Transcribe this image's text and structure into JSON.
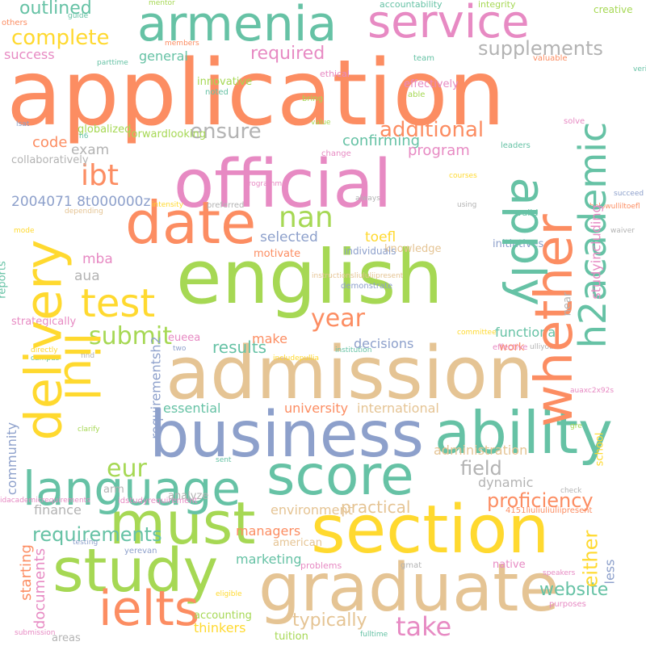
{
  "palette": {
    "orange": "#fc8d62",
    "green": "#66c2a5",
    "pink": "#e78ac3",
    "lime": "#a6d854",
    "yellow": "#ffd92f",
    "tan": "#e5c494",
    "blue": "#8da0cb",
    "gray": "#b3b3b3"
  },
  "words": [
    {
      "text": "application",
      "color": "orange"
    },
    {
      "text": "english",
      "color": "lime"
    },
    {
      "text": "admission",
      "color": "tan"
    },
    {
      "text": "official",
      "color": "pink"
    },
    {
      "text": "business",
      "color": "blue"
    },
    {
      "text": "section",
      "color": "yellow"
    },
    {
      "text": "graduate",
      "color": "tan"
    },
    {
      "text": "study",
      "color": "lime"
    },
    {
      "text": "score",
      "color": "green"
    },
    {
      "text": "must",
      "color": "lime"
    },
    {
      "text": "date",
      "color": "orange"
    },
    {
      "text": "ability",
      "color": "green"
    },
    {
      "text": "language",
      "color": "green"
    },
    {
      "text": "ielts",
      "color": "orange"
    },
    {
      "text": "armenia",
      "color": "green"
    },
    {
      "text": "service",
      "color": "pink"
    },
    {
      "text": "test",
      "color": "yellow"
    },
    {
      "text": "take",
      "color": "pink"
    },
    {
      "text": "ibt",
      "color": "orange"
    },
    {
      "text": "nan",
      "color": "lime"
    },
    {
      "text": "eur",
      "color": "lime"
    },
    {
      "text": "year",
      "color": "orange"
    },
    {
      "text": "ensure",
      "color": "gray"
    },
    {
      "text": "additional",
      "color": "orange"
    },
    {
      "text": "submit",
      "color": "lime"
    },
    {
      "text": "complete",
      "color": "yellow"
    },
    {
      "text": "required",
      "color": "pink"
    },
    {
      "text": "supplements",
      "color": "gray"
    },
    {
      "text": "outlined",
      "color": "green"
    },
    {
      "text": "requirements",
      "color": "green"
    },
    {
      "text": "field",
      "color": "gray"
    },
    {
      "text": "website",
      "color": "green"
    },
    {
      "text": "proficiency",
      "color": "orange"
    },
    {
      "text": "typically",
      "color": "tan"
    },
    {
      "text": "practical",
      "color": "tan"
    },
    {
      "text": "results",
      "color": "green"
    },
    {
      "text": "general",
      "color": "green"
    },
    {
      "text": "code",
      "color": "orange"
    },
    {
      "text": "exam",
      "color": "gray"
    },
    {
      "text": "confirming",
      "color": "green"
    },
    {
      "text": "program",
      "color": "pink"
    },
    {
      "text": "selected",
      "color": "blue"
    },
    {
      "text": "toefl",
      "color": "yellow"
    },
    {
      "text": "mba",
      "color": "pink"
    },
    {
      "text": "aua",
      "color": "gray"
    },
    {
      "text": "2004071 8t000000z",
      "color": "blue"
    },
    {
      "text": "success",
      "color": "pink"
    },
    {
      "text": "make",
      "color": "orange"
    },
    {
      "text": "decisions",
      "color": "blue"
    },
    {
      "text": "functional",
      "color": "green"
    },
    {
      "text": "essential",
      "color": "green"
    },
    {
      "text": "university",
      "color": "orange"
    },
    {
      "text": "international",
      "color": "tan"
    },
    {
      "text": "administration",
      "color": "tan"
    },
    {
      "text": "dynamic",
      "color": "gray"
    },
    {
      "text": "marketing",
      "color": "green"
    },
    {
      "text": "managers",
      "color": "orange"
    },
    {
      "text": "environment",
      "color": "tan"
    },
    {
      "text": "finance",
      "color": "gray"
    },
    {
      "text": "thinkers",
      "color": "yellow"
    },
    {
      "text": "accounting",
      "color": "lime"
    },
    {
      "text": "areas",
      "color": "gray"
    },
    {
      "text": "tuition",
      "color": "lime"
    },
    {
      "text": "analyze",
      "color": "gray"
    },
    {
      "text": "arm",
      "color": "gray"
    },
    {
      "text": "american",
      "color": "tan"
    },
    {
      "text": "native",
      "color": "pink"
    },
    {
      "text": "problems",
      "color": "pink"
    },
    {
      "text": "knowledge",
      "color": "tan"
    },
    {
      "text": "motivate",
      "color": "orange"
    },
    {
      "text": "initiatives",
      "color": "blue"
    },
    {
      "text": "individuals",
      "color": "blue"
    },
    {
      "text": "innovative",
      "color": "lime"
    },
    {
      "text": "forwardlooking",
      "color": "lime"
    },
    {
      "text": "globalized",
      "color": "lime"
    },
    {
      "text": "effectively",
      "color": "pink"
    },
    {
      "text": "collaboratively",
      "color": "gray"
    },
    {
      "text": "strategically",
      "color": "pink"
    },
    {
      "text": "euеea",
      "color": "pink"
    },
    {
      "text": "work",
      "color": "orange"
    },
    {
      "text": "creative",
      "color": "lime"
    },
    {
      "text": "accountability",
      "color": "green"
    },
    {
      "text": "integrity",
      "color": "lime"
    },
    {
      "text": "ethical",
      "color": "pink"
    },
    {
      "text": "bring",
      "color": "lime"
    },
    {
      "text": "able",
      "color": "lime"
    },
    {
      "text": "team",
      "color": "green"
    },
    {
      "text": "valuable",
      "color": "orange"
    },
    {
      "text": "value",
      "color": "lime"
    },
    {
      "text": "change",
      "color": "pink"
    },
    {
      "text": "leaders",
      "color": "green"
    },
    {
      "text": "solve",
      "color": "pink"
    },
    {
      "text": "effective",
      "color": "pink"
    },
    {
      "text": "others",
      "color": "orange"
    },
    {
      "text": "guide",
      "color": "green"
    },
    {
      "text": "mentor",
      "color": "lime"
    },
    {
      "text": "members",
      "color": "orange"
    },
    {
      "text": "parttime",
      "color": "green"
    },
    {
      "text": "noted",
      "color": "green"
    },
    {
      "text": "h6",
      "color": "green"
    },
    {
      "text": "lsat",
      "color": "blue"
    },
    {
      "text": "always",
      "color": "gray"
    },
    {
      "text": "courses",
      "color": "yellow"
    },
    {
      "text": "programme",
      "color": "pink"
    },
    {
      "text": "intensity",
      "color": "yellow"
    },
    {
      "text": "preferred",
      "color": "gray"
    },
    {
      "text": "depending",
      "color": "tan"
    },
    {
      "text": "using",
      "color": "gray"
    },
    {
      "text": "valid",
      "color": "green"
    },
    {
      "text": "succeed",
      "color": "blue"
    },
    {
      "text": "belowulliltoefl",
      "color": "orange"
    },
    {
      "text": "instructionsliululiipresent",
      "color": "tan"
    },
    {
      "text": "demonstrate",
      "color": "blue"
    },
    {
      "text": "mode",
      "color": "yellow"
    },
    {
      "text": "waiver",
      "color": "gray"
    },
    {
      "text": "verify",
      "color": "green"
    },
    {
      "text": "directly",
      "color": "yellow"
    },
    {
      "text": "campus",
      "color": "green"
    },
    {
      "text": "find",
      "color": "gray"
    },
    {
      "text": "two",
      "color": "blue"
    },
    {
      "text": "committee",
      "color": "yellow"
    },
    {
      "text": "includepullia",
      "color": "yellow"
    },
    {
      "text": "institution",
      "color": "green"
    },
    {
      "text": "ulliyou",
      "color": "gray"
    },
    {
      "text": "clarify",
      "color": "lime"
    },
    {
      "text": "sent",
      "color": "green"
    },
    {
      "text": "auaxc2x92s",
      "color": "pink"
    },
    {
      "text": "gre",
      "color": "lime"
    },
    {
      "text": "check",
      "color": "gray"
    },
    {
      "text": "idstudyrequirement",
      "color": "pink"
    },
    {
      "text": "idacademicrequirements",
      "color": "pink"
    },
    {
      "text": "4151liuliuliuliipresent",
      "color": "orange"
    },
    {
      "text": "testing",
      "color": "blue"
    },
    {
      "text": "yerevan",
      "color": "blue"
    },
    {
      "text": "gmat",
      "color": "gray"
    },
    {
      "text": "eligible",
      "color": "yellow"
    },
    {
      "text": "speakers",
      "color": "pink"
    },
    {
      "text": "purposes",
      "color": "pink"
    },
    {
      "text": "submission",
      "color": "pink"
    },
    {
      "text": "fulltime",
      "color": "green"
    },
    {
      "text": "delivery",
      "color": "yellow"
    },
    {
      "text": "whether",
      "color": "orange"
    },
    {
      "text": "requirementsh6pto",
      "color": "lime"
    },
    {
      "text": "liul",
      "color": "yellow"
    },
    {
      "text": "apply",
      "color": "green"
    },
    {
      "text": "h2academic",
      "color": "green"
    },
    {
      "text": "either",
      "color": "yellow"
    },
    {
      "text": "studyincluding",
      "color": "pink"
    },
    {
      "text": "less",
      "color": "blue"
    },
    {
      "text": "community",
      "color": "blue"
    },
    {
      "text": "requirementsh2",
      "color": "blue"
    },
    {
      "text": "school",
      "color": "yellow"
    },
    {
      "text": "starting",
      "color": "orange"
    },
    {
      "text": "documents",
      "color": "pink"
    },
    {
      "text": "reports",
      "color": "green"
    },
    {
      "text": "near",
      "color": "gray"
    }
  ]
}
